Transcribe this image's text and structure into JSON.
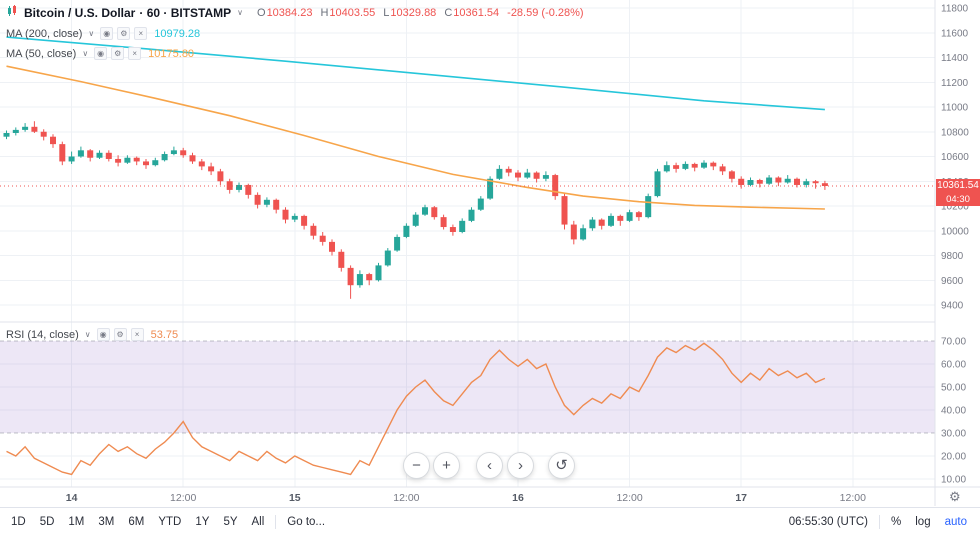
{
  "header": {
    "title": "Bitcoin / U.S. Dollar",
    "subtitle": "· 60 · BITSTAMP",
    "ohlc": {
      "o_label": "O",
      "o": "10384.23",
      "h_label": "H",
      "h": "10403.55",
      "l_label": "L",
      "l": "10329.88",
      "c_label": "C",
      "c": "10361.54",
      "change": "-28.59 (-0.28%)"
    }
  },
  "icons": {
    "chevron": "∨",
    "eye": "◉",
    "gear": "⚙",
    "close": "×"
  },
  "indicators": {
    "ma200": {
      "label": "MA (200, close)",
      "value": "10979.28",
      "color": "#26c6da"
    },
    "ma50": {
      "label": "MA (50, close)",
      "value": "10175.80",
      "color": "#f7a54a"
    },
    "rsi": {
      "label": "RSI (14, close)",
      "value": "53.75",
      "color": "#ef8b51"
    }
  },
  "price_badge": {
    "price": "10361.54",
    "countdown": "04:30",
    "color": "#ef5350"
  },
  "nav": {
    "zoom_out": "−",
    "zoom_in": "+",
    "pan_left": "‹",
    "pan_right": "›",
    "reset": "↺"
  },
  "toolbar": {
    "ranges": [
      "1D",
      "5D",
      "1M",
      "3M",
      "6M",
      "YTD",
      "1Y",
      "5Y",
      "All"
    ],
    "goto": "Go to...",
    "clock": "06:55:30 (UTC)",
    "percent": "%",
    "log": "log",
    "auto": "auto"
  },
  "chart_data": {
    "type": "candlestick",
    "title": "Bitcoin / U.S. Dollar, 60, BITSTAMP",
    "last_price": 10361.54,
    "price_axis": {
      "min": 9400,
      "max": 11800,
      "step": 200
    },
    "rsi_axis": {
      "min": 10,
      "max": 70,
      "step": 10,
      "band": [
        30,
        70
      ]
    },
    "time_ticks": [
      {
        "label": "14",
        "index": 7,
        "day": true
      },
      {
        "label": "12:00",
        "index": 19
      },
      {
        "label": "15",
        "index": 31,
        "day": true
      },
      {
        "label": "12:00",
        "index": 43
      },
      {
        "label": "16",
        "index": 55,
        "day": true
      },
      {
        "label": "12:00",
        "index": 67
      },
      {
        "label": "17",
        "index": 79,
        "day": true
      },
      {
        "label": "12:00",
        "index": 91
      }
    ],
    "candles": [
      [
        10760,
        10810,
        10740,
        10790
      ],
      [
        10790,
        10835,
        10770,
        10815
      ],
      [
        10815,
        10870,
        10800,
        10840
      ],
      [
        10840,
        10885,
        10790,
        10800
      ],
      [
        10800,
        10820,
        10730,
        10760
      ],
      [
        10760,
        10780,
        10670,
        10700
      ],
      [
        10700,
        10720,
        10530,
        10560
      ],
      [
        10560,
        10640,
        10540,
        10600
      ],
      [
        10600,
        10680,
        10590,
        10650
      ],
      [
        10650,
        10660,
        10560,
        10590
      ],
      [
        10590,
        10650,
        10580,
        10630
      ],
      [
        10630,
        10650,
        10560,
        10580
      ],
      [
        10580,
        10610,
        10520,
        10550
      ],
      [
        10550,
        10610,
        10540,
        10590
      ],
      [
        10590,
        10600,
        10530,
        10560
      ],
      [
        10560,
        10580,
        10500,
        10530
      ],
      [
        10530,
        10590,
        10520,
        10570
      ],
      [
        10570,
        10640,
        10560,
        10620
      ],
      [
        10620,
        10680,
        10610,
        10650
      ],
      [
        10650,
        10670,
        10590,
        10610
      ],
      [
        10610,
        10630,
        10540,
        10560
      ],
      [
        10560,
        10580,
        10490,
        10520
      ],
      [
        10520,
        10550,
        10450,
        10480
      ],
      [
        10480,
        10500,
        10370,
        10400
      ],
      [
        10400,
        10420,
        10300,
        10330
      ],
      [
        10330,
        10390,
        10310,
        10370
      ],
      [
        10370,
        10380,
        10260,
        10290
      ],
      [
        10290,
        10310,
        10180,
        10210
      ],
      [
        10210,
        10270,
        10190,
        10250
      ],
      [
        10250,
        10260,
        10140,
        10170
      ],
      [
        10170,
        10190,
        10060,
        10090
      ],
      [
        10090,
        10140,
        10070,
        10120
      ],
      [
        10120,
        10130,
        10010,
        10040
      ],
      [
        10040,
        10060,
        9930,
        9960
      ],
      [
        9960,
        9990,
        9880,
        9910
      ],
      [
        9910,
        9930,
        9800,
        9830
      ],
      [
        9830,
        9850,
        9670,
        9700
      ],
      [
        9700,
        9720,
        9450,
        9560
      ],
      [
        9560,
        9680,
        9540,
        9650
      ],
      [
        9650,
        9660,
        9560,
        9600
      ],
      [
        9600,
        9740,
        9590,
        9720
      ],
      [
        9720,
        9860,
        9710,
        9840
      ],
      [
        9840,
        9970,
        9830,
        9950
      ],
      [
        9950,
        10060,
        9940,
        10040
      ],
      [
        10040,
        10150,
        10030,
        10130
      ],
      [
        10130,
        10210,
        10120,
        10190
      ],
      [
        10190,
        10200,
        10090,
        10110
      ],
      [
        10110,
        10130,
        10010,
        10030
      ],
      [
        10030,
        10050,
        9960,
        9990
      ],
      [
        9990,
        10100,
        9980,
        10080
      ],
      [
        10080,
        10190,
        10070,
        10170
      ],
      [
        10170,
        10280,
        10160,
        10260
      ],
      [
        10260,
        10440,
        10250,
        10420
      ],
      [
        10420,
        10530,
        10410,
        10500
      ],
      [
        10500,
        10520,
        10440,
        10470
      ],
      [
        10470,
        10490,
        10400,
        10430
      ],
      [
        10430,
        10500,
        10420,
        10470
      ],
      [
        10470,
        10480,
        10390,
        10420
      ],
      [
        10420,
        10480,
        10400,
        10450
      ],
      [
        10450,
        10460,
        10250,
        10280
      ],
      [
        10280,
        10300,
        10010,
        10050
      ],
      [
        10050,
        10080,
        9890,
        9930
      ],
      [
        9930,
        10050,
        9920,
        10020
      ],
      [
        10020,
        10110,
        10000,
        10090
      ],
      [
        10090,
        10100,
        10010,
        10040
      ],
      [
        10040,
        10140,
        10030,
        10120
      ],
      [
        10120,
        10130,
        10040,
        10080
      ],
      [
        10080,
        10170,
        10070,
        10150
      ],
      [
        10150,
        10160,
        10080,
        10110
      ],
      [
        10110,
        10300,
        10100,
        10280
      ],
      [
        10280,
        10500,
        10270,
        10480
      ],
      [
        10480,
        10560,
        10470,
        10530
      ],
      [
        10530,
        10550,
        10470,
        10500
      ],
      [
        10500,
        10560,
        10490,
        10540
      ],
      [
        10540,
        10550,
        10480,
        10510
      ],
      [
        10510,
        10570,
        10500,
        10550
      ],
      [
        10550,
        10560,
        10490,
        10520
      ],
      [
        10520,
        10540,
        10450,
        10480
      ],
      [
        10480,
        10490,
        10390,
        10420
      ],
      [
        10420,
        10440,
        10340,
        10370
      ],
      [
        10370,
        10430,
        10360,
        10410
      ],
      [
        10410,
        10420,
        10350,
        10380
      ],
      [
        10380,
        10450,
        10370,
        10430
      ],
      [
        10430,
        10440,
        10360,
        10390
      ],
      [
        10390,
        10450,
        10380,
        10420
      ],
      [
        10420,
        10430,
        10350,
        10370
      ],
      [
        10370,
        10420,
        10350,
        10400
      ],
      [
        10400,
        10410,
        10340,
        10384.23
      ],
      [
        10384.23,
        10403.55,
        10329.88,
        10361.54
      ]
    ],
    "ma200": {
      "period": 200,
      "current": 10979.28,
      "points": [
        [
          0,
          11565
        ],
        [
          15,
          11470
        ],
        [
          30,
          11370
        ],
        [
          45,
          11265
        ],
        [
          60,
          11160
        ],
        [
          75,
          11050
        ],
        [
          88,
          10979.28
        ]
      ]
    },
    "ma50": {
      "period": 50,
      "current": 10175.8,
      "points": [
        [
          0,
          11330
        ],
        [
          8,
          11205
        ],
        [
          16,
          11070
        ],
        [
          24,
          10930
        ],
        [
          32,
          10770
        ],
        [
          40,
          10600
        ],
        [
          48,
          10455
        ],
        [
          56,
          10350
        ],
        [
          62,
          10280
        ],
        [
          68,
          10235
        ],
        [
          74,
          10205
        ],
        [
          80,
          10190
        ],
        [
          88,
          10175.8
        ]
      ]
    },
    "rsi": {
      "period": 14,
      "current": 53.75,
      "values": [
        22,
        20,
        24,
        19,
        17,
        15,
        13,
        12,
        18,
        16,
        21,
        25,
        22,
        24,
        21,
        19,
        23,
        26,
        30,
        35,
        28,
        24,
        22,
        20,
        18,
        22,
        20,
        18,
        22,
        19,
        17,
        20,
        18,
        16,
        15,
        14,
        13,
        12,
        18,
        16,
        24,
        32,
        40,
        46,
        50,
        53,
        48,
        44,
        42,
        47,
        52,
        55,
        62,
        66,
        62,
        59,
        62,
        58,
        60,
        50,
        42,
        38,
        42,
        45,
        43,
        47,
        45,
        50,
        48,
        55,
        63,
        67,
        65,
        68,
        66,
        69,
        66,
        62,
        56,
        52,
        56,
        53,
        58,
        55,
        57,
        54,
        56,
        52,
        53.75
      ]
    },
    "colors": {
      "up": "#26a69a",
      "down": "#ef5350",
      "ma200": "#26c6da",
      "ma50": "#f7a54a",
      "rsi": "#ef8b51",
      "grid": "#eef1f5",
      "axis_text": "#787b86",
      "day_text": "#555b66",
      "band_fill": "rgba(126,87,194,0.14)",
      "band_line": "#787b86",
      "border": "#e0e3eb",
      "last_line": "#ef5350"
    }
  }
}
